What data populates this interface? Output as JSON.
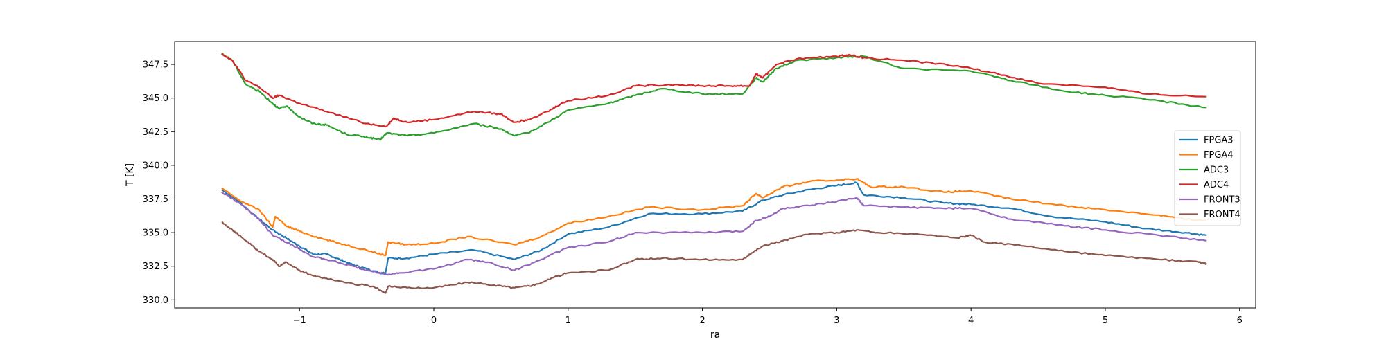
{
  "chart_data": {
    "type": "line",
    "xlabel": "ra",
    "ylabel": "T [K]",
    "xlim": [
      -1.93,
      6.12
    ],
    "ylim": [
      329.4,
      349.2
    ],
    "xticks": [
      -1,
      0,
      1,
      2,
      3,
      4,
      5,
      6
    ],
    "xtick_labels": [
      "−1",
      "0",
      "1",
      "2",
      "3",
      "4",
      "5",
      "6"
    ],
    "yticks": [
      330.0,
      332.5,
      335.0,
      337.5,
      340.0,
      342.5,
      345.0,
      347.5
    ],
    "ytick_labels": [
      "330.0",
      "332.5",
      "335.0",
      "337.5",
      "340.0",
      "342.5",
      "345.0",
      "347.5"
    ],
    "grid": false,
    "legend_position": "center-right",
    "series": [
      {
        "name": "FPGA3",
        "color": "#1f77b4",
        "x": [
          -1.58,
          -1.45,
          -1.35,
          -1.2,
          -1.1,
          -1.0,
          -0.9,
          -0.8,
          -0.7,
          -0.6,
          -0.5,
          -0.4,
          -0.36,
          -0.34,
          -0.2,
          0.0,
          0.3,
          0.6,
          0.8,
          1.0,
          1.3,
          1.6,
          2.0,
          2.3,
          2.45,
          2.6,
          2.8,
          3.0,
          3.15,
          3.2,
          3.5,
          3.8,
          4.0,
          4.3,
          4.6,
          5.0,
          5.3,
          5.6,
          5.75
        ],
        "y": [
          338.2,
          337.3,
          336.4,
          335.2,
          334.6,
          334.0,
          333.4,
          333.4,
          333.0,
          332.6,
          332.3,
          332.0,
          332.0,
          333.1,
          333.1,
          333.4,
          333.7,
          333.0,
          333.7,
          334.9,
          335.4,
          336.4,
          336.4,
          336.6,
          337.4,
          337.8,
          338.2,
          338.5,
          338.7,
          337.8,
          337.6,
          337.2,
          337.1,
          336.8,
          336.2,
          335.8,
          335.3,
          335.0,
          334.8
        ]
      },
      {
        "name": "FPGA4",
        "color": "#ff7f0e",
        "x": [
          -1.58,
          -1.45,
          -1.3,
          -1.2,
          -1.18,
          -1.1,
          -1.0,
          -0.85,
          -0.7,
          -0.5,
          -0.36,
          -0.34,
          -0.2,
          0.0,
          0.25,
          0.6,
          0.8,
          1.0,
          1.3,
          1.6,
          2.0,
          2.3,
          2.4,
          2.45,
          2.6,
          2.8,
          3.0,
          3.15,
          3.25,
          3.5,
          3.8,
          4.0,
          4.3,
          4.7,
          5.0,
          5.4,
          5.6,
          5.75
        ],
        "y": [
          338.3,
          337.4,
          336.7,
          335.4,
          336.2,
          335.5,
          335.1,
          334.6,
          334.2,
          333.7,
          333.3,
          334.3,
          334.1,
          334.2,
          334.7,
          334.1,
          334.7,
          335.7,
          336.2,
          336.9,
          336.7,
          337.0,
          337.9,
          337.6,
          338.4,
          338.8,
          338.9,
          339.0,
          338.4,
          338.4,
          338.0,
          338.1,
          337.5,
          337.0,
          336.7,
          336.3,
          336.0,
          335.9
        ]
      },
      {
        "name": "ADC3",
        "color": "#2ca02c",
        "x": [
          -1.58,
          -1.5,
          -1.4,
          -1.3,
          -1.2,
          -1.15,
          -1.1,
          -1.0,
          -0.9,
          -0.8,
          -0.65,
          -0.5,
          -0.4,
          -0.35,
          -0.2,
          0.0,
          0.3,
          0.5,
          0.6,
          0.7,
          0.85,
          1.0,
          1.3,
          1.5,
          1.7,
          2.0,
          2.3,
          2.4,
          2.45,
          2.55,
          2.7,
          3.0,
          3.2,
          3.5,
          4.0,
          4.3,
          4.7,
          5.0,
          5.4,
          5.75
        ],
        "y": [
          348.3,
          347.8,
          346.0,
          345.5,
          344.6,
          344.2,
          344.4,
          343.6,
          343.1,
          343.0,
          342.3,
          342.1,
          341.9,
          342.4,
          342.2,
          342.4,
          343.1,
          342.7,
          342.2,
          342.4,
          343.2,
          344.1,
          344.6,
          345.2,
          345.7,
          345.3,
          345.3,
          346.5,
          346.2,
          347.2,
          347.8,
          348.0,
          348.1,
          347.2,
          347.0,
          346.3,
          345.5,
          345.2,
          344.8,
          344.3
        ]
      },
      {
        "name": "ADC4",
        "color": "#d62728",
        "x": [
          -1.58,
          -1.5,
          -1.4,
          -1.3,
          -1.2,
          -1.15,
          -1.0,
          -0.8,
          -0.5,
          -0.35,
          -0.3,
          -0.2,
          0.0,
          0.3,
          0.5,
          0.6,
          0.7,
          0.85,
          0.95,
          1.0,
          1.3,
          1.5,
          1.8,
          2.0,
          2.2,
          2.35,
          2.4,
          2.45,
          2.55,
          2.7,
          3.0,
          3.1,
          3.2,
          3.5,
          3.9,
          4.2,
          4.5,
          5.0,
          5.3,
          5.75
        ],
        "y": [
          348.3,
          347.8,
          346.3,
          345.8,
          345.0,
          345.2,
          344.6,
          344.0,
          343.1,
          342.9,
          343.5,
          343.2,
          343.4,
          344.0,
          343.8,
          343.2,
          343.4,
          344.0,
          344.6,
          344.8,
          345.2,
          345.9,
          346.0,
          345.9,
          345.9,
          345.9,
          346.8,
          346.5,
          347.5,
          347.9,
          348.1,
          348.2,
          348.0,
          347.8,
          347.4,
          346.8,
          346.1,
          345.8,
          345.3,
          345.1
        ]
      },
      {
        "name": "FRONT3",
        "color": "#9467bd",
        "x": [
          -1.58,
          -1.45,
          -1.3,
          -1.2,
          -1.1,
          -1.0,
          -0.9,
          -0.8,
          -0.6,
          -0.5,
          -0.35,
          -0.25,
          0.0,
          0.25,
          0.4,
          0.6,
          0.8,
          1.0,
          1.3,
          1.5,
          2.0,
          2.3,
          2.4,
          2.5,
          2.6,
          2.8,
          3.0,
          3.15,
          3.2,
          3.5,
          3.8,
          4.0,
          4.3,
          4.7,
          5.0,
          5.4,
          5.75
        ],
        "y": [
          338.0,
          337.2,
          336.0,
          334.8,
          334.3,
          333.8,
          333.2,
          333.0,
          332.5,
          332.2,
          331.9,
          332.0,
          332.3,
          333.0,
          332.8,
          332.2,
          333.0,
          333.9,
          334.3,
          335.0,
          335.0,
          335.1,
          335.9,
          336.2,
          336.8,
          337.0,
          337.3,
          337.6,
          337.0,
          336.9,
          336.8,
          336.8,
          336.0,
          335.5,
          335.2,
          334.8,
          334.4
        ]
      },
      {
        "name": "FRONT4",
        "color": "#8c564b",
        "x": [
          -1.58,
          -1.5,
          -1.4,
          -1.3,
          -1.2,
          -1.15,
          -1.1,
          -1.0,
          -0.9,
          -0.8,
          -0.6,
          -0.45,
          -0.36,
          -0.34,
          -0.2,
          0.0,
          0.25,
          0.45,
          0.6,
          0.75,
          0.9,
          1.0,
          1.3,
          1.5,
          1.7,
          2.0,
          2.3,
          2.35,
          2.45,
          2.6,
          2.8,
          3.0,
          3.15,
          3.3,
          3.6,
          3.9,
          4.0,
          4.1,
          4.4,
          4.7,
          5.0,
          5.4,
          5.7,
          5.75
        ],
        "y": [
          335.8,
          335.2,
          334.4,
          333.6,
          333.0,
          332.5,
          332.8,
          332.2,
          331.8,
          331.6,
          331.2,
          331.0,
          330.5,
          331.0,
          330.9,
          330.9,
          331.3,
          331.1,
          330.9,
          331.1,
          331.7,
          332.0,
          332.2,
          333.0,
          333.1,
          333.0,
          333.0,
          333.4,
          334.0,
          334.4,
          334.9,
          335.0,
          335.2,
          335.0,
          334.9,
          334.6,
          334.8,
          334.3,
          334.0,
          333.6,
          333.3,
          333.0,
          332.8,
          332.7
        ]
      }
    ]
  }
}
